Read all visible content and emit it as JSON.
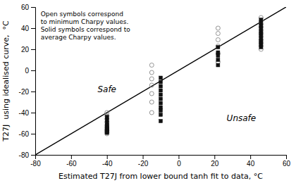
{
  "chart_data": {
    "type": "scatter",
    "xlabel": "Estimated T27J from lower bound tanh fit to data, °C",
    "ylabel": "T27J  using idealised curve,  °C",
    "xlim": [
      -80,
      60
    ],
    "ylim": [
      -80,
      60
    ],
    "xticks": [
      -80,
      -60,
      -40,
      -20,
      0,
      20,
      40,
      60
    ],
    "yticks": [
      -80,
      -60,
      -40,
      -20,
      0,
      20,
      40,
      60
    ],
    "grid": false,
    "series": [
      {
        "type": "line",
        "color": "#000000",
        "line_style": "solid",
        "x": [
          -80,
          60
        ],
        "values": [
          -80,
          60
        ]
      },
      {
        "color": "#888888",
        "marker": "open-circle",
        "x": [
          -40,
          -40,
          -40,
          -40,
          -40,
          -40,
          -40,
          -40,
          -40,
          -40,
          -40
        ],
        "values": [
          -40,
          -43,
          -46,
          -49,
          -52,
          -54,
          -56,
          -57,
          -58,
          -59,
          -60
        ]
      },
      {
        "color": "#888888",
        "marker": "open-circle",
        "x": [
          -15,
          -15,
          -15,
          -15,
          -15,
          -15,
          -15
        ],
        "values": [
          5,
          -2,
          -8,
          -14,
          -22,
          -30,
          -40
        ]
      },
      {
        "color": "#888888",
        "marker": "open-circle",
        "x": [
          22,
          22,
          22,
          22,
          22,
          22
        ],
        "values": [
          40,
          35,
          29,
          23,
          16,
          8
        ]
      },
      {
        "color": "#888888",
        "marker": "open-circle",
        "x": [
          46,
          46,
          46,
          46,
          46,
          46,
          46,
          46,
          46,
          46,
          46
        ],
        "values": [
          50,
          47,
          44,
          41,
          38,
          35,
          32,
          29,
          26,
          23,
          20
        ]
      },
      {
        "color": "#111111",
        "marker": "square",
        "x": [
          -40,
          -40,
          -40,
          -40,
          -40,
          -40,
          -40,
          -40,
          -40,
          -40
        ],
        "values": [
          -44,
          -47,
          -50,
          -52,
          -54,
          -55,
          -56,
          -57,
          -58,
          -59
        ]
      },
      {
        "color": "#111111",
        "marker": "square",
        "x": [
          -10,
          -10,
          -10,
          -10,
          -10,
          -10,
          -10,
          -10,
          -10,
          -10,
          -10
        ],
        "values": [
          -7,
          -11,
          -15,
          -19,
          -23,
          -27,
          -31,
          -35,
          -38,
          -42,
          -48
        ]
      },
      {
        "color": "#111111",
        "marker": "square",
        "x": [
          22,
          22,
          22,
          22,
          22
        ],
        "values": [
          22,
          17,
          14,
          10,
          5
        ]
      },
      {
        "color": "#111111",
        "marker": "square",
        "x": [
          46,
          46,
          46,
          46,
          46,
          46,
          46,
          46,
          46,
          46,
          46,
          46
        ],
        "values": [
          48,
          45,
          42,
          40,
          37,
          35,
          33,
          30,
          28,
          26,
          24,
          22
        ]
      }
    ],
    "annotations": [
      {
        "text": "Safe",
        "x": -40,
        "y": -18
      },
      {
        "text": "Unsafe",
        "x": 35,
        "y": -45
      },
      {
        "lines": [
          "Open symbols correspond",
          "to minimum Charpy values.",
          "Solid symbols correspond to",
          "average Charpy values."
        ],
        "x": -77,
        "y": 56
      }
    ]
  }
}
